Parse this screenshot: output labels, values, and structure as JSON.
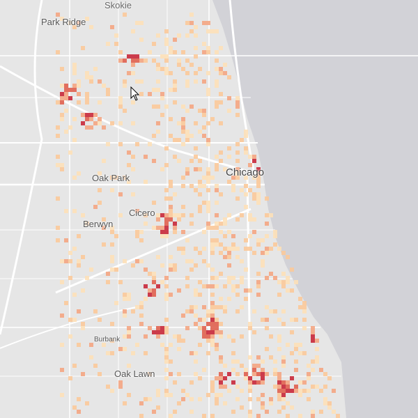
{
  "map": {
    "colors": {
      "land": "#e6e6e6",
      "water": "#d2d2d7",
      "road": "#ffffff",
      "heat_low": "#fde0b8",
      "heat_mid": "#f4a582",
      "heat_high": "#c8283a"
    },
    "labels": {
      "skokie": "Skokie",
      "park_ridge": "Park Ridge",
      "oak_park": "Oak Park",
      "chicago": "Chicago",
      "cicero": "Cicero",
      "berwyn": "Berwyn",
      "burbank": "Burbank",
      "oak_lawn": "Oak Lawn"
    },
    "cursor_icon": "arrow-pointer-icon"
  }
}
